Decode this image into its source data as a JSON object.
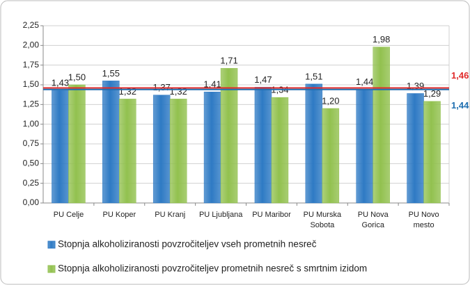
{
  "chart_data": {
    "type": "bar",
    "categories": [
      "PU Celje",
      "PU Koper",
      "PU Kranj",
      "PU Ljubljana",
      "PU Maribor",
      "PU Murska\nSobota",
      "PU Nova\nGorica",
      "PU Novo\nmesto"
    ],
    "series": [
      {
        "name": "Stopnja alkoholiziranosti povzročiteljev vseh prometnih nesreč",
        "color": "#2e7ac4",
        "values": [
          1.43,
          1.55,
          1.37,
          1.41,
          1.47,
          1.51,
          1.44,
          1.39
        ],
        "value_labels": [
          "1,43",
          "1,55",
          "1,37",
          "1,41",
          "1,47",
          "1,51",
          "1,44",
          "1,39"
        ]
      },
      {
        "name": "Stopnja alkoholiziranosti povzročiteljev prometnih nesreč s smrtnim izidom",
        "color": "#92c14f",
        "values": [
          1.5,
          1.32,
          1.32,
          1.71,
          1.34,
          1.2,
          1.98,
          1.29
        ],
        "value_labels": [
          "1,50",
          "1,32",
          "1,32",
          "1,71",
          "1,34",
          "1,20",
          "1,98",
          "1,29"
        ]
      }
    ],
    "reference_lines": [
      {
        "value": 1.46,
        "label": "1,46",
        "color": "#e02a2a"
      },
      {
        "value": 1.44,
        "label": "1,44",
        "color": "#1f6fb0"
      }
    ],
    "ylim": [
      0,
      2.25
    ],
    "yticks": [
      {
        "value": 0,
        "label": "0,00"
      },
      {
        "value": 0.25,
        "label": "0,25"
      },
      {
        "value": 0.5,
        "label": "0,50"
      },
      {
        "value": 0.75,
        "label": "0,75"
      },
      {
        "value": 1,
        "label": "1,00"
      },
      {
        "value": 1.25,
        "label": "1,25"
      },
      {
        "value": 1.5,
        "label": "1,50"
      },
      {
        "value": 1.75,
        "label": "1,75"
      },
      {
        "value": 2,
        "label": "2,00"
      },
      {
        "value": 2.25,
        "label": "2,25"
      }
    ],
    "grid": true
  }
}
